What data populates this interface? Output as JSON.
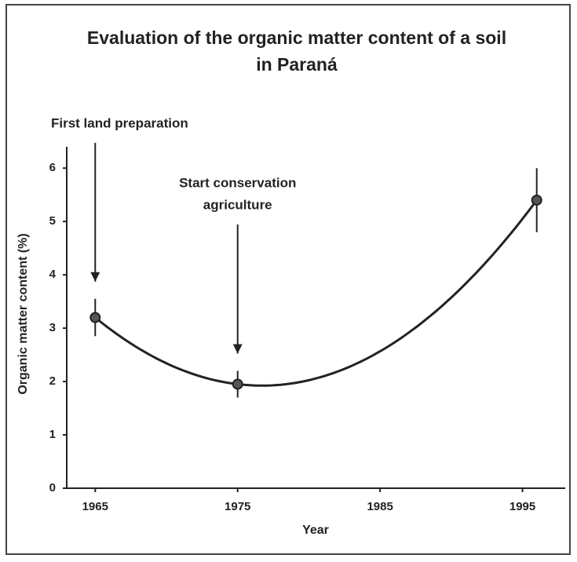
{
  "chart_data": {
    "type": "line",
    "title": [
      "Evaluation of the organic matter content of a soil",
      "in Paraná"
    ],
    "annotations": [
      [
        "First land preparation"
      ],
      [
        "Start conservation",
        "agriculture"
      ]
    ],
    "xlabel": "Year",
    "ylabel": "Organic matter content (%)",
    "x": [
      1965,
      1975,
      1996
    ],
    "series": [
      {
        "color": "#222222",
        "values": [
          3.2,
          1.95,
          5.4
        ],
        "errors": [
          0.35,
          0.25,
          0.6
        ]
      }
    ],
    "xlim": [
      1963,
      1998
    ],
    "xticks": [
      1965,
      1975,
      1985,
      1995
    ],
    "ylim": [
      0,
      6.4
    ],
    "yticks": [
      0,
      1,
      2,
      3,
      4,
      5,
      6
    ]
  }
}
